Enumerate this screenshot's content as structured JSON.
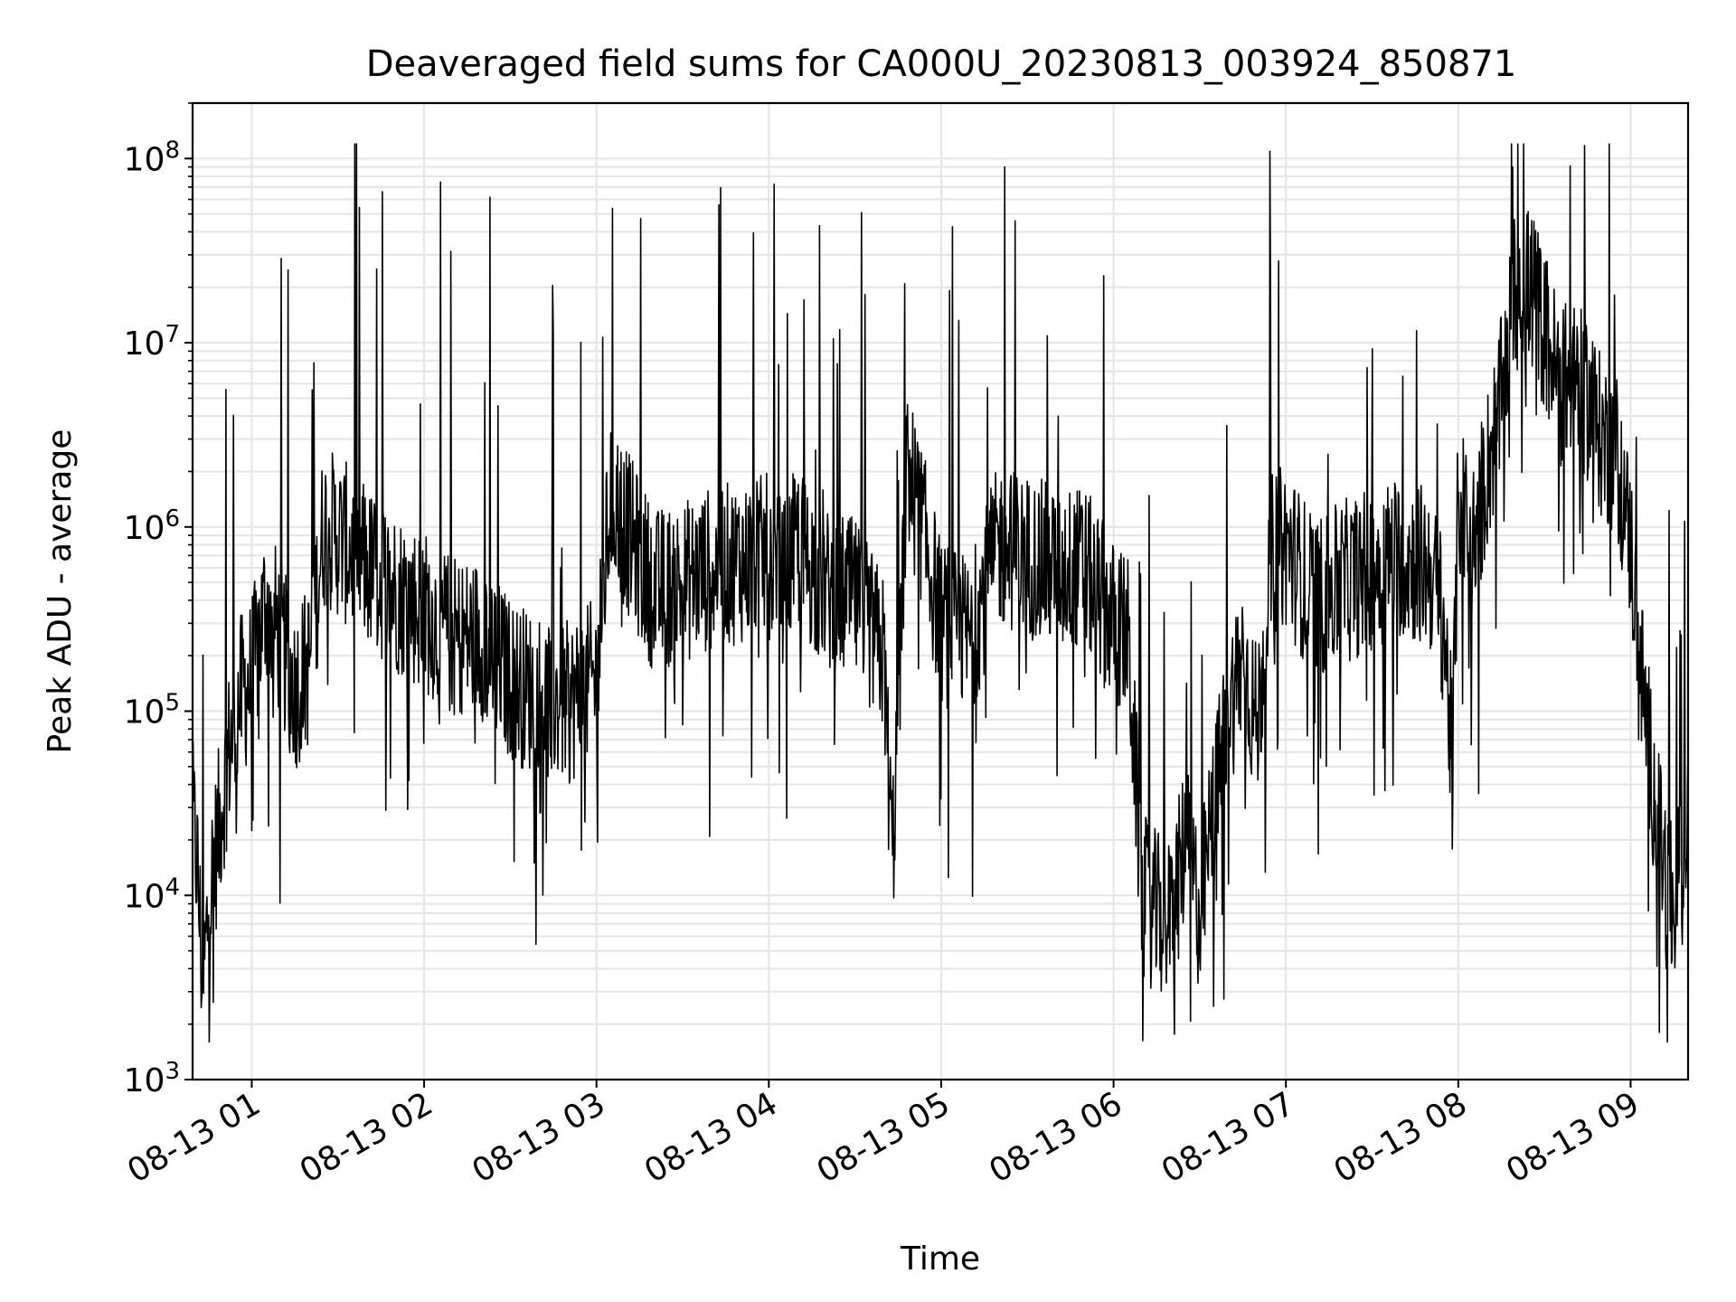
{
  "chart_data": {
    "type": "line",
    "title": "Deaveraged field sums for CA000U_20230813_003924_850871",
    "xlabel": "Time",
    "ylabel": "Peak ADU - average",
    "yscale": "log",
    "ylim": [
      1000,
      200000000
    ],
    "xlim": [
      "2023-08-13 00:39:24",
      "2023-08-13 09:20:00"
    ],
    "grid": {
      "major": true,
      "minor_y": true
    },
    "x_ticks": [
      "08-13 01",
      "08-13 02",
      "08-13 03",
      "08-13 04",
      "08-13 05",
      "08-13 06",
      "08-13 07",
      "08-13 08",
      "08-13 09"
    ],
    "y_ticks": [
      {
        "base": "10",
        "exp": "3"
      },
      {
        "base": "10",
        "exp": "4"
      },
      {
        "base": "10",
        "exp": "5"
      },
      {
        "base": "10",
        "exp": "6"
      },
      {
        "base": "10",
        "exp": "7"
      },
      {
        "base": "10",
        "exp": "8"
      }
    ],
    "line_color": "#000000",
    "grid_color": "#e6e6e6",
    "series": [
      {
        "x": [
          "00:39",
          "00:41",
          "00:43",
          "00:45",
          "00:48",
          "00:52",
          "00:56",
          "01:00",
          "01:05",
          "01:10",
          "01:15",
          "01:20",
          "01:25",
          "01:30",
          "01:40",
          "01:50",
          "02:00",
          "02:10",
          "02:20",
          "02:30",
          "02:40",
          "02:50",
          "03:00",
          "03:05",
          "03:10",
          "03:20",
          "03:30",
          "03:40",
          "03:50",
          "04:00",
          "04:05",
          "04:10",
          "04:20",
          "04:30",
          "04:40",
          "04:43",
          "04:48",
          "04:52",
          "05:00",
          "05:10",
          "05:20",
          "05:30",
          "05:40",
          "05:50",
          "06:00",
          "06:05",
          "06:10",
          "06:15",
          "06:20",
          "06:25",
          "06:30",
          "06:35",
          "06:40",
          "06:45",
          "06:50",
          "06:55",
          "07:00",
          "07:10",
          "07:20",
          "07:30",
          "07:40",
          "07:50",
          "07:55",
          "07:58",
          "08:00",
          "08:05",
          "08:10",
          "08:15",
          "08:20",
          "08:25",
          "08:30",
          "08:35",
          "08:40",
          "08:45",
          "08:50",
          "08:55",
          "09:00",
          "09:05",
          "09:10",
          "09:15",
          "09:20"
        ],
        "y": [
          30000,
          15000,
          3000,
          9000,
          20000,
          60000,
          120000,
          150000,
          400000,
          250000,
          130000,
          180000,
          1000000,
          900000,
          600000,
          450000,
          350000,
          250000,
          250000,
          150000,
          120000,
          110000,
          150000,
          1500000,
          1000000,
          450000,
          500000,
          600000,
          650000,
          700000,
          500000,
          800000,
          450000,
          400000,
          200000,
          15000,
          2000000,
          1300000,
          300000,
          250000,
          800000,
          700000,
          600000,
          600000,
          300000,
          250000,
          10000,
          8000,
          7000,
          20000,
          8000,
          30000,
          100000,
          200000,
          80000,
          700000,
          800000,
          400000,
          500000,
          600000,
          700000,
          600000,
          300000,
          50000,
          1500000,
          800000,
          2000000,
          5000000,
          20000000,
          20000000,
          12000000,
          6000000,
          6000000,
          5000000,
          3000000,
          2500000,
          800000,
          100000,
          20000,
          8000,
          30000
        ]
      }
    ]
  }
}
